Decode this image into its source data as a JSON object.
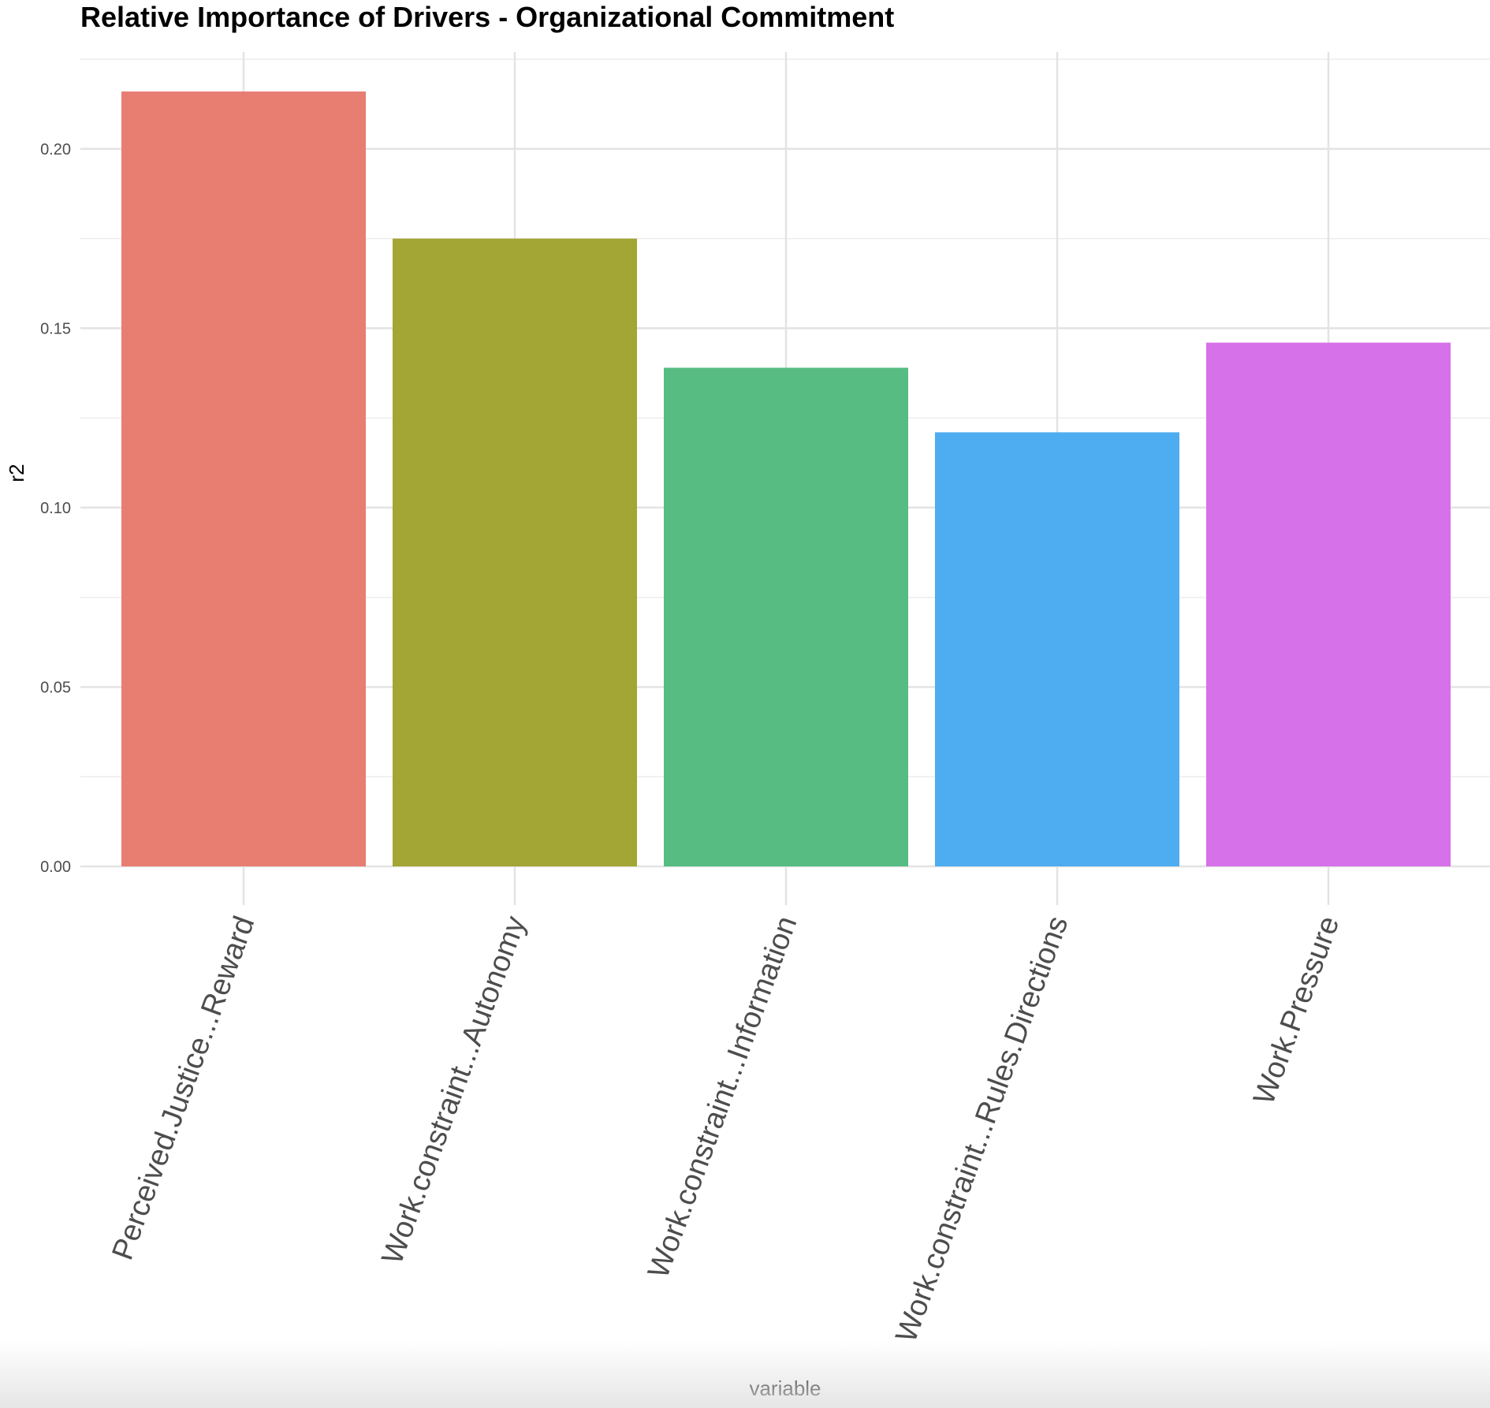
{
  "chart_data": {
    "type": "bar",
    "title": "Relative Importance of Drivers - Organizational Commitment",
    "xlabel": "variable",
    "ylabel": "r2",
    "categories": [
      "Perceived.Justice...Reward",
      "Work.constraint...Autonomy",
      "Work.constraint...Information",
      "Work.constraint...Rules.Directions",
      "Work.Pressure"
    ],
    "values": [
      0.216,
      0.175,
      0.139,
      0.121,
      0.146
    ],
    "colors": [
      "#E87D72",
      "#A3A534",
      "#56BC82",
      "#4EACF0",
      "#D771E9"
    ],
    "ylim": [
      0,
      0.227
    ],
    "yticks": [
      0.0,
      0.05,
      0.1,
      0.15,
      0.2
    ],
    "ytick_labels": [
      "0.00",
      "0.05",
      "0.10",
      "0.15",
      "0.20"
    ],
    "grid": true,
    "legend": "none"
  }
}
